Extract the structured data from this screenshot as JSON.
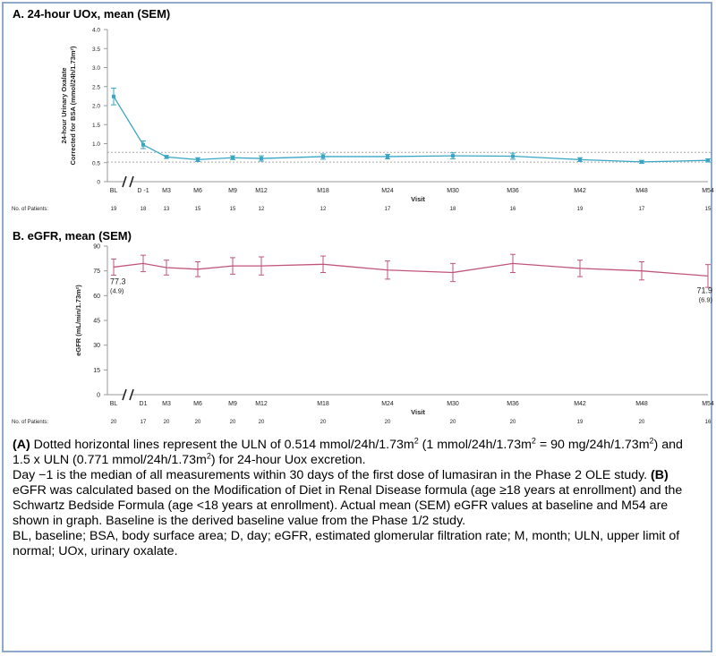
{
  "chart_data": [
    {
      "type": "line",
      "title": "A. 24-hour UOx, mean (SEM)",
      "ylabel_line1": "24-hour Urinary Oxalate",
      "ylabel_line2": "Corrected for BSA (mmol/24h/1.73m²)",
      "xlabel": "Visit",
      "ylim": [
        0,
        4.0
      ],
      "yticks": [
        "0",
        "0.5",
        "1.0",
        "1.5",
        "2.0",
        "2.5",
        "3.0",
        "3.5",
        "4.0"
      ],
      "categories": [
        "BL",
        "D -1",
        "M3",
        "M6",
        "M9",
        "M12",
        "M18",
        "M24",
        "M30",
        "M36",
        "M42",
        "M48",
        "M54"
      ],
      "category_months": [
        -6,
        -2,
        3,
        6,
        9,
        12,
        18,
        24,
        30,
        36,
        42,
        48,
        54
      ],
      "values": [
        2.24,
        0.97,
        0.65,
        0.58,
        0.63,
        0.61,
        0.66,
        0.66,
        0.68,
        0.67,
        0.58,
        0.52,
        0.56
      ],
      "errors": [
        0.22,
        0.1,
        0.04,
        0.05,
        0.05,
        0.07,
        0.07,
        0.06,
        0.08,
        0.08,
        0.05,
        0.04,
        0.04
      ],
      "reference_lines": [
        0.514,
        0.771
      ],
      "patients_label": "No. of Patients:",
      "patients": [
        "19",
        "18",
        "13",
        "15",
        "15",
        "12",
        "12",
        "17",
        "18",
        "16",
        "19",
        "17",
        "15"
      ],
      "color": "#3aa6c6"
    },
    {
      "type": "line",
      "title": "B. eGFR, mean (SEM)",
      "ylabel": "eGFR (mL/min/1.73m²)",
      "xlabel": "Visit",
      "ylim": [
        0,
        90
      ],
      "yticks": [
        "0",
        "15",
        "30",
        "45",
        "60",
        "75",
        "90"
      ],
      "categories": [
        "BL",
        "D1",
        "M3",
        "M6",
        "M9",
        "M12",
        "M18",
        "M24",
        "M30",
        "M36",
        "M42",
        "M48",
        "M54"
      ],
      "category_months": [
        -6,
        -2,
        3,
        6,
        9,
        12,
        18,
        24,
        30,
        36,
        42,
        48,
        54
      ],
      "values": [
        77.3,
        79.5,
        77.0,
        76.0,
        78.0,
        78.0,
        79.0,
        75.5,
        74.0,
        79.5,
        76.5,
        75.0,
        71.9
      ],
      "errors": [
        4.9,
        5.0,
        4.5,
        4.5,
        5.0,
        5.5,
        5.0,
        5.5,
        5.5,
        5.5,
        5.0,
        5.5,
        6.9
      ],
      "annotations": [
        {
          "index": 0,
          "value": "77.3",
          "sem": "(4.9)"
        },
        {
          "index": 12,
          "value": "71.9",
          "sem": "(6.9)"
        }
      ],
      "patients_label": "No. of Patients:",
      "patients": [
        "20",
        "17",
        "20",
        "20",
        "20",
        "20",
        "20",
        "20",
        "20",
        "20",
        "19",
        "20",
        "16"
      ],
      "color": "#c0557a"
    }
  ],
  "caption": {
    "a_label": "(A)",
    "a_part1": " Dotted horizontal lines represent the ULN of 0.514 mmol/24h/1.73m",
    "a_sup1": "2",
    "a_part2": " (1 mmol/24h/1.73m",
    "a_sup2": "2",
    "a_part3": " = 90 mg/24h/1.73m",
    "a_sup3": "2",
    "a_part4": ") and 1.5 x ULN (0.771 mmol/24h/1.73m",
    "a_sup4": "2",
    "a_part5": ")  for 24-hour Uox excretion.",
    "day_text": "Day −1 is the median of all measurements within 30 days of the first dose of lumasiran in the Phase 2 OLE study. ",
    "b_label": "(B)",
    "b_text": " eGFR was calculated based on the Modification of Diet in Renal Disease formula (age ≥18 years at enrollment) and the Schwartz Bedside Formula (age <18 years at enrollment). Actual mean (SEM) eGFR values at baseline and M54 are shown in graph. Baseline is the derived baseline value from the Phase 1/2 study.",
    "abbrev": "BL, baseline; BSA, body surface area; D, day; eGFR, estimated glomerular filtration rate; M, month; ULN, upper limit of normal; UOx, urinary oxalate."
  }
}
